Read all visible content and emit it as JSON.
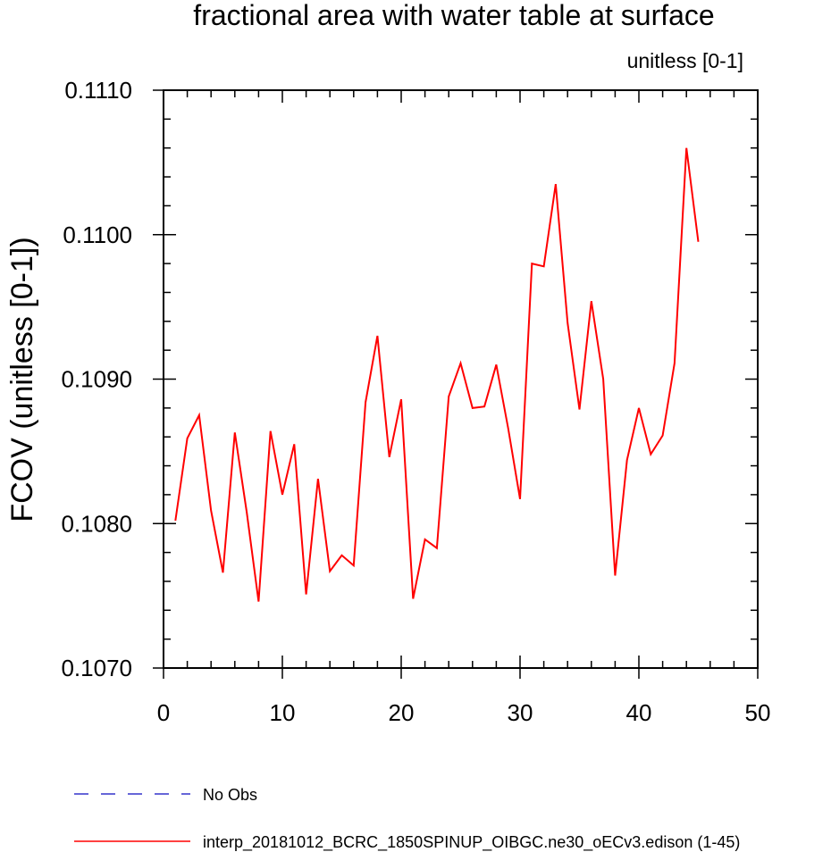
{
  "chart_data": {
    "type": "line",
    "title": "fractional area with water table at surface",
    "units_label": "unitless [0-1]",
    "ylabel": "FCOV  (unitless [0-1])",
    "xlabel": "",
    "xlim": [
      0,
      50
    ],
    "ylim": [
      0.107,
      0.111
    ],
    "x_ticks": [
      0,
      10,
      20,
      30,
      40,
      50
    ],
    "x_tick_labels": [
      "0",
      "10",
      "20",
      "30",
      "40",
      "50"
    ],
    "y_ticks": [
      0.107,
      0.108,
      0.109,
      0.11,
      0.111
    ],
    "y_tick_labels": [
      "0.1070",
      "0.1080",
      "0.1090",
      "0.1100",
      "0.1110"
    ],
    "grid": false,
    "legend_position": "bottom",
    "series": [
      {
        "name": "No Obs",
        "color": "#3333cc",
        "dash": "dashed",
        "x": [],
        "y": []
      },
      {
        "name": "interp_20181012_BCRC_1850SPINUP_OIBGC.ne30_oECv3.edison (1-45)",
        "color": "#ff0000",
        "dash": "solid",
        "x": [
          1,
          2,
          3,
          4,
          5,
          6,
          7,
          8,
          9,
          10,
          11,
          12,
          13,
          14,
          15,
          16,
          17,
          18,
          19,
          20,
          21,
          22,
          23,
          24,
          25,
          26,
          27,
          28,
          29,
          30,
          31,
          32,
          33,
          34,
          35,
          36,
          37,
          38,
          39,
          40,
          41,
          42,
          43,
          44,
          45
        ],
        "y": [
          0.10802,
          0.10859,
          0.10875,
          0.10809,
          0.10766,
          0.10863,
          0.10808,
          0.10746,
          0.10864,
          0.1082,
          0.10855,
          0.10751,
          0.10831,
          0.10767,
          0.10778,
          0.10771,
          0.10884,
          0.1093,
          0.10846,
          0.10886,
          0.10748,
          0.10789,
          0.10783,
          0.10888,
          0.10911,
          0.1088,
          0.10881,
          0.1091,
          0.10866,
          0.10817,
          0.1098,
          0.10978,
          0.11035,
          0.10939,
          0.10879,
          0.10954,
          0.109,
          0.10764,
          0.10844,
          0.1088,
          0.10848,
          0.10861,
          0.10911,
          0.1106,
          0.10995
        ]
      }
    ]
  }
}
